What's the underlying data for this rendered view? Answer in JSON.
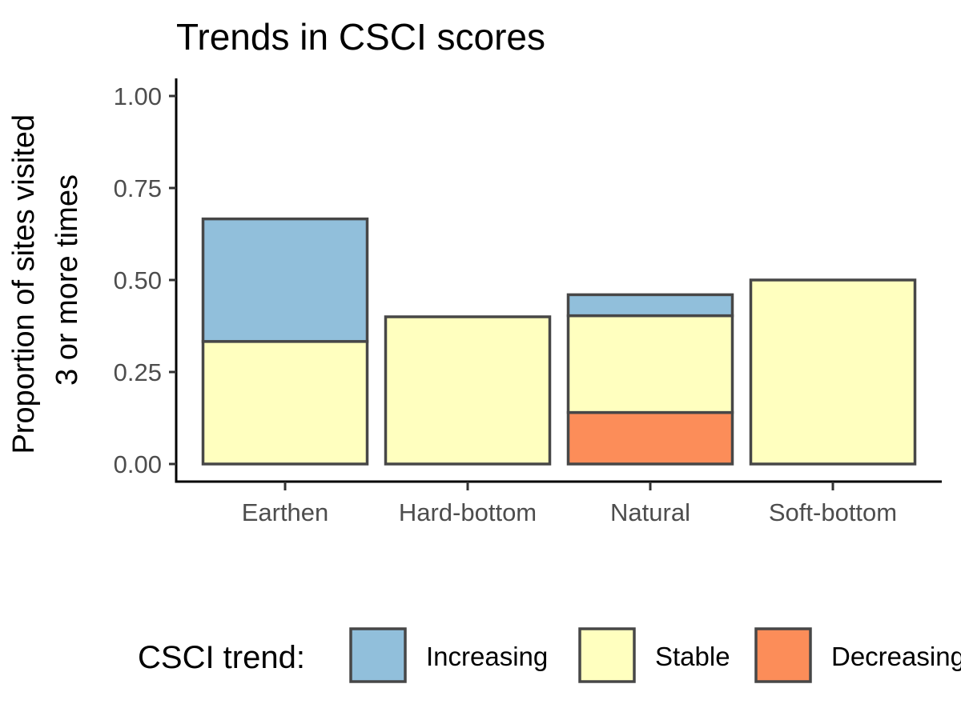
{
  "chart_data": {
    "type": "bar",
    "stacked": true,
    "title": "Trends in CSCI scores",
    "xlabel": "",
    "ylabel_lines": [
      "Proportion of sites visited",
      "3 or more times"
    ],
    "ylim": [
      0,
      1
    ],
    "yticks": [
      "0.00",
      "0.25",
      "0.50",
      "0.75",
      "1.00"
    ],
    "categories": [
      "Earthen",
      "Hard-bottom",
      "Natural",
      "Soft-bottom"
    ],
    "series": [
      {
        "name": "Decreasing",
        "color": "#fc8d59",
        "values": [
          0,
          0,
          0.14,
          0
        ]
      },
      {
        "name": "Stable",
        "color": "#ffffbf",
        "values": [
          0.333,
          0.4,
          0.263,
          0.5
        ]
      },
      {
        "name": "Increasing",
        "color": "#91bfdb",
        "values": [
          0.333,
          0,
          0.057,
          0
        ]
      }
    ],
    "legend": {
      "title": "CSCI trend:",
      "position": "bottom",
      "order": [
        "Increasing",
        "Stable",
        "Decreasing"
      ],
      "labels": [
        "Increasing",
        "Stable",
        "Decreasing"
      ]
    },
    "grid": false
  }
}
